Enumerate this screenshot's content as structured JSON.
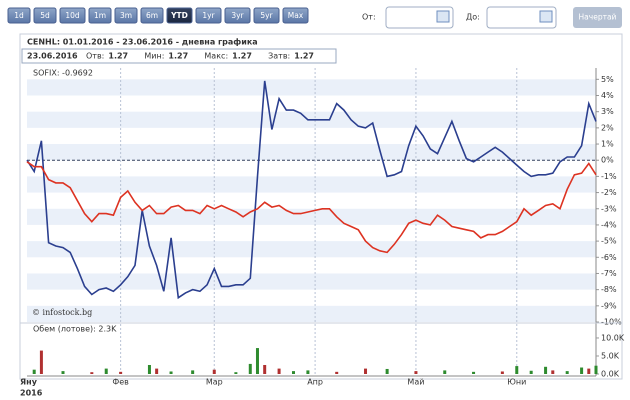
{
  "toolbar": {
    "periods": [
      "1d",
      "5d",
      "10d",
      "1m",
      "3m",
      "6m",
      "YTD",
      "1yr",
      "3yr",
      "5yr",
      "Max"
    ],
    "active": "YTD",
    "from_label": "От:",
    "to_label": "До:",
    "submit": "Начертай"
  },
  "header": {
    "title": "CENHL: 01.01.2016 - 23.06.2016 - дневна графика",
    "date": "23.06.2016",
    "quote": [
      {
        "label": "Отв:",
        "value": 1.27
      },
      {
        "label": "Мин:",
        "value": 1.27
      },
      {
        "label": "Макс:",
        "value": 1.27
      },
      {
        "label": "Затв:",
        "value": 1.27
      }
    ]
  },
  "chart_data": [
    {
      "type": "line",
      "watermark": "© infostock.bg",
      "year_label": "2016",
      "grid": "bands",
      "zero_line": true,
      "categories": [
        "Яну",
        null,
        null,
        null,
        null,
        null,
        null,
        null,
        null,
        null,
        null,
        null,
        null,
        "Фев",
        null,
        null,
        null,
        null,
        null,
        null,
        null,
        null,
        null,
        null,
        null,
        null,
        "Мар",
        null,
        null,
        null,
        null,
        null,
        null,
        null,
        null,
        null,
        null,
        null,
        null,
        null,
        "Апр",
        null,
        null,
        null,
        null,
        null,
        null,
        null,
        null,
        null,
        null,
        null,
        null,
        null,
        "Май",
        null,
        null,
        null,
        null,
        null,
        null,
        null,
        null,
        null,
        null,
        null,
        null,
        null,
        "Юни",
        null,
        null,
        null,
        null,
        null,
        null,
        null,
        null,
        null,
        null,
        null
      ],
      "series": [
        {
          "color": "#2b3f8f",
          "values": [
            0,
            -0.7,
            1.2,
            -5.1,
            -5.3,
            -5.4,
            -5.7,
            -6.7,
            -7.8,
            -8.3,
            -8.0,
            -7.9,
            -8.1,
            -7.7,
            -7.2,
            -6.5,
            -3.1,
            -5.3,
            -6.5,
            -8.1,
            -4.8,
            -8.5,
            -8.2,
            -8.0,
            -8.1,
            -7.7,
            -6.7,
            -7.8,
            -7.8,
            -7.7,
            -7.7,
            -7.3,
            -1.0,
            4.9,
            1.9,
            3.8,
            3.1,
            3.1,
            2.9,
            2.5,
            2.5,
            2.5,
            2.5,
            3.5,
            3.1,
            2.5,
            2.1,
            2.0,
            2.3,
            0.6,
            -1.0,
            -0.9,
            -0.7,
            0.9,
            2.1,
            1.5,
            0.7,
            0.4,
            1.4,
            2.4,
            1.2,
            0.1,
            -0.1,
            0.2,
            0.5,
            0.8,
            0.5,
            0.1,
            -0.3,
            -0.7,
            -1.0,
            -0.9,
            -0.9,
            -0.8,
            -0.1,
            0.2,
            0.2,
            0.9,
            3.5,
            2.4
          ]
        },
        {
          "name": "SOFIX: -0.9692",
          "color": "#dd3322",
          "values": [
            -0.1,
            -0.4,
            -0.4,
            -1.2,
            -1.4,
            -1.4,
            -1.7,
            -2.5,
            -3.3,
            -3.8,
            -3.3,
            -3.3,
            -3.4,
            -2.3,
            -1.9,
            -2.6,
            -3.1,
            -2.8,
            -3.3,
            -3.3,
            -2.9,
            -2.8,
            -3.1,
            -3.1,
            -3.3,
            -2.8,
            -3.0,
            -2.8,
            -3.0,
            -3.2,
            -3.5,
            -3.2,
            -3.0,
            -2.6,
            -2.9,
            -2.8,
            -3.1,
            -3.3,
            -3.3,
            -3.2,
            -3.1,
            -3.0,
            -3.0,
            -3.5,
            -3.9,
            -4.1,
            -4.3,
            -5.0,
            -5.4,
            -5.6,
            -5.7,
            -5.2,
            -4.6,
            -3.9,
            -3.7,
            -3.9,
            -4.0,
            -3.4,
            -3.7,
            -4.1,
            -4.2,
            -4.3,
            -4.4,
            -4.8,
            -4.6,
            -4.6,
            -4.4,
            -4.1,
            -3.8,
            -3.0,
            -3.4,
            -3.1,
            -2.8,
            -2.7,
            -3.0,
            -1.8,
            -0.9,
            -0.8,
            -0.2,
            -0.9
          ]
        }
      ],
      "ylim": [
        -10,
        5.7
      ],
      "yticks": [
        {
          "value": 5,
          "label": "5%"
        },
        {
          "value": 4,
          "label": "4%"
        },
        {
          "value": 3,
          "label": "3%"
        },
        {
          "value": 2,
          "label": "2%"
        },
        {
          "value": 1,
          "label": "1%"
        },
        {
          "value": 0,
          "label": "0%"
        },
        {
          "value": -1,
          "label": "-1%"
        },
        {
          "value": -2,
          "label": "-2%"
        },
        {
          "value": -3,
          "label": "-3%"
        },
        {
          "value": -4,
          "label": "-4%"
        },
        {
          "value": -5,
          "label": "-5%"
        },
        {
          "value": -6,
          "label": "-6%"
        },
        {
          "value": -7,
          "label": "-7%"
        },
        {
          "value": -8,
          "label": "-8%"
        },
        {
          "value": -9,
          "label": "-9%"
        },
        {
          "value": -10,
          "label": "-10%"
        }
      ]
    },
    {
      "type": "bar",
      "title": "Обем (лотове): 2.3K",
      "values": [
        0,
        1200,
        6500,
        0,
        0,
        800,
        0,
        0,
        0,
        500,
        0,
        1500,
        0,
        600,
        0,
        0,
        0,
        2500,
        1500,
        0,
        700,
        0,
        0,
        1000,
        0,
        0,
        1200,
        0,
        0,
        500,
        0,
        2800,
        7200,
        2500,
        0,
        1500,
        0,
        800,
        0,
        1000,
        0,
        0,
        0,
        600,
        0,
        0,
        0,
        1500,
        0,
        0,
        1400,
        0,
        0,
        0,
        800,
        0,
        0,
        0,
        1000,
        0,
        0,
        0,
        600,
        0,
        0,
        0,
        700,
        0,
        2200,
        0,
        900,
        0,
        2000,
        1000,
        0,
        800,
        0,
        1800,
        1500,
        2300
      ],
      "colors": [
        "#2e8b2e",
        "#2e8b2e",
        "#b03030",
        "#2e8b2e",
        "#2e8b2e",
        "#2e8b2e",
        "#2e8b2e",
        "#2e8b2e",
        "#2e8b2e",
        "#b03030",
        "#2e8b2e",
        "#2e8b2e",
        "#2e8b2e",
        "#b03030",
        "#2e8b2e",
        "#2e8b2e",
        "#2e8b2e",
        "#2e8b2e",
        "#b03030",
        "#2e8b2e",
        "#2e8b2e",
        "#2e8b2e",
        "#2e8b2e",
        "#2e8b2e",
        "#2e8b2e",
        "#2e8b2e",
        "#b03030",
        "#2e8b2e",
        "#2e8b2e",
        "#2e8b2e",
        "#2e8b2e",
        "#2e8b2e",
        "#2e8b2e",
        "#b03030",
        "#2e8b2e",
        "#b03030",
        "#2e8b2e",
        "#2e8b2e",
        "#2e8b2e",
        "#2e8b2e",
        "#2e8b2e",
        "#2e8b2e",
        "#2e8b2e",
        "#b03030",
        "#2e8b2e",
        "#2e8b2e",
        "#2e8b2e",
        "#b03030",
        "#2e8b2e",
        "#2e8b2e",
        "#2e8b2e",
        "#2e8b2e",
        "#2e8b2e",
        "#2e8b2e",
        "#b03030",
        "#2e8b2e",
        "#2e8b2e",
        "#2e8b2e",
        "#2e8b2e",
        "#2e8b2e",
        "#2e8b2e",
        "#2e8b2e",
        "#2e8b2e",
        "#2e8b2e",
        "#2e8b2e",
        "#2e8b2e",
        "#b03030",
        "#2e8b2e",
        "#2e8b2e",
        "#2e8b2e",
        "#2e8b2e",
        "#2e8b2e",
        "#2e8b2e",
        "#b03030",
        "#2e8b2e",
        "#2e8b2e",
        "#2e8b2e",
        "#2e8b2e",
        "#b03030",
        "#2e8b2e"
      ],
      "ylim": [
        0,
        13600
      ],
      "yticks": [
        {
          "value": 10000,
          "label": "10.0K"
        },
        {
          "value": 5000,
          "label": "5.0K"
        },
        {
          "value": 0,
          "label": "0.0K"
        }
      ]
    }
  ]
}
